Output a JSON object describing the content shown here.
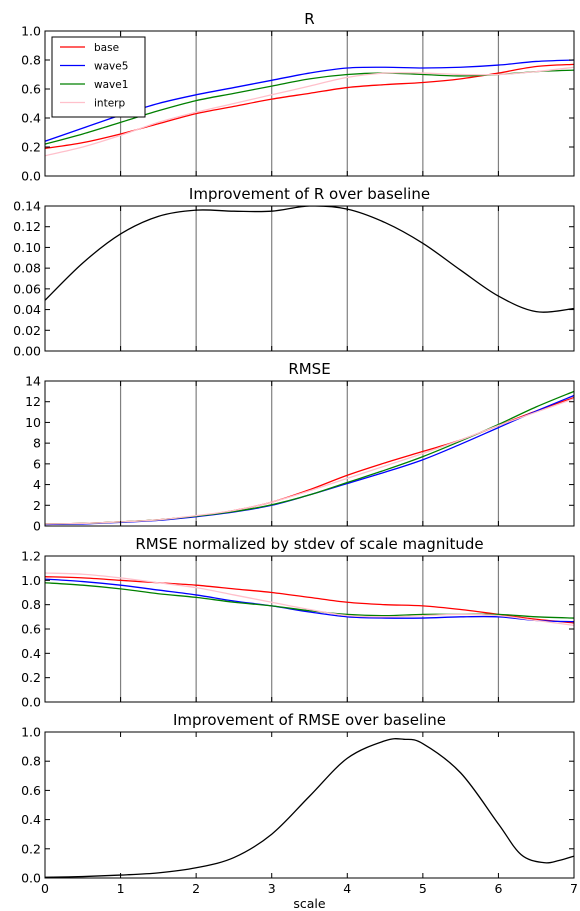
{
  "chart_data": [
    {
      "type": "line",
      "title": "R",
      "xlabel": "",
      "ylabel": "",
      "xlim": [
        0,
        7
      ],
      "ylim": [
        0,
        1.0
      ],
      "xticks": [
        0,
        1,
        2,
        3,
        4,
        5,
        6,
        7
      ],
      "yticks": [
        "0.0",
        "0.2",
        "0.4",
        "0.6",
        "0.8",
        "1.0"
      ],
      "vgrid": [
        1,
        2,
        3,
        4,
        5,
        6
      ],
      "show_xticklabels": false,
      "legend": {
        "placement": "top-left"
      },
      "series": [
        {
          "name": "base",
          "color": "#ff0000",
          "x": [
            0,
            0.5,
            1,
            1.5,
            2,
            2.5,
            3,
            3.5,
            4,
            4.5,
            5,
            5.5,
            6,
            6.5,
            7
          ],
          "y": [
            0.19,
            0.23,
            0.29,
            0.36,
            0.43,
            0.48,
            0.53,
            0.57,
            0.61,
            0.63,
            0.645,
            0.67,
            0.71,
            0.755,
            0.77
          ]
        },
        {
          "name": "wave5",
          "color": "#0000ff",
          "x": [
            0,
            0.5,
            1,
            1.5,
            2,
            2.5,
            3,
            3.5,
            4,
            4.5,
            5,
            5.5,
            6,
            6.5,
            7
          ],
          "y": [
            0.24,
            0.33,
            0.42,
            0.5,
            0.56,
            0.61,
            0.66,
            0.71,
            0.745,
            0.75,
            0.745,
            0.75,
            0.765,
            0.79,
            0.8
          ]
        },
        {
          "name": "wave1",
          "color": "#008000",
          "x": [
            0,
            0.5,
            1,
            1.5,
            2,
            2.5,
            3,
            3.5,
            4,
            4.5,
            5,
            5.5,
            6,
            6.5,
            7
          ],
          "y": [
            0.22,
            0.29,
            0.37,
            0.45,
            0.52,
            0.57,
            0.62,
            0.67,
            0.7,
            0.71,
            0.7,
            0.69,
            0.7,
            0.72,
            0.73
          ]
        },
        {
          "name": "interp",
          "color": "#ffc0cb",
          "x": [
            0,
            0.5,
            1,
            1.5,
            2,
            2.5,
            3,
            3.5,
            4,
            4.5,
            5,
            5.5,
            6,
            6.5,
            7
          ],
          "y": [
            0.14,
            0.2,
            0.28,
            0.37,
            0.44,
            0.5,
            0.56,
            0.62,
            0.68,
            0.71,
            0.71,
            0.7,
            0.7,
            0.72,
            0.75
          ]
        }
      ]
    },
    {
      "type": "line",
      "title": "Improvement of R over baseline",
      "xlabel": "",
      "ylabel": "",
      "xlim": [
        0,
        7
      ],
      "ylim": [
        0,
        0.14
      ],
      "xticks": [
        0,
        1,
        2,
        3,
        4,
        5,
        6,
        7
      ],
      "yticks": [
        "0.00",
        "0.02",
        "0.04",
        "0.06",
        "0.08",
        "0.10",
        "0.12",
        "0.14"
      ],
      "vgrid": [
        1,
        2,
        3,
        4,
        5,
        6
      ],
      "show_xticklabels": false,
      "series": [
        {
          "color": "#000000",
          "x": [
            0,
            0.5,
            1,
            1.5,
            2,
            2.5,
            3,
            3.5,
            4,
            4.5,
            5,
            5.5,
            6,
            6.5,
            7
          ],
          "y": [
            0.049,
            0.085,
            0.113,
            0.13,
            0.136,
            0.135,
            0.135,
            0.14,
            0.137,
            0.124,
            0.104,
            0.078,
            0.053,
            0.038,
            0.041
          ]
        }
      ]
    },
    {
      "type": "line",
      "title": "RMSE",
      "xlabel": "",
      "ylabel": "",
      "xlim": [
        0,
        7
      ],
      "ylim": [
        0,
        14
      ],
      "xticks": [
        0,
        1,
        2,
        3,
        4,
        5,
        6,
        7
      ],
      "yticks": [
        "0",
        "2",
        "4",
        "6",
        "8",
        "10",
        "12",
        "14"
      ],
      "vgrid": [
        1,
        2,
        3,
        4,
        5,
        6
      ],
      "show_xticklabels": false,
      "series": [
        {
          "name": "base",
          "color": "#ff0000",
          "x": [
            0,
            0.5,
            1,
            1.5,
            2,
            2.5,
            3,
            3.5,
            4,
            4.5,
            5,
            5.5,
            6,
            6.5,
            7
          ],
          "y": [
            0.2,
            0.25,
            0.4,
            0.6,
            0.95,
            1.5,
            2.3,
            3.5,
            4.9,
            6.1,
            7.2,
            8.3,
            9.7,
            11.1,
            12.4
          ]
        },
        {
          "name": "wave5",
          "color": "#0000ff",
          "x": [
            0,
            0.5,
            1,
            1.5,
            2,
            2.5,
            3,
            3.5,
            4,
            4.5,
            5,
            5.5,
            6,
            6.5,
            7
          ],
          "y": [
            0.15,
            0.2,
            0.35,
            0.55,
            0.9,
            1.35,
            2.0,
            3.0,
            4.1,
            5.2,
            6.4,
            7.9,
            9.5,
            11.1,
            12.6
          ]
        },
        {
          "name": "wave1",
          "color": "#008000",
          "x": [
            0,
            0.5,
            1,
            1.5,
            2,
            2.5,
            3,
            3.5,
            4,
            4.5,
            5,
            5.5,
            6,
            6.5,
            7
          ],
          "y": [
            0.2,
            0.25,
            0.4,
            0.6,
            0.95,
            1.4,
            2.05,
            3.0,
            4.2,
            5.4,
            6.7,
            8.2,
            9.8,
            11.5,
            13.0
          ]
        },
        {
          "name": "interp",
          "color": "#ffc0cb",
          "x": [
            0,
            0.5,
            1,
            1.5,
            2,
            2.5,
            3,
            3.5,
            4,
            4.5,
            5,
            5.5,
            6,
            6.5,
            7
          ],
          "y": [
            0.2,
            0.25,
            0.4,
            0.6,
            1.0,
            1.5,
            2.3,
            3.4,
            4.6,
            5.8,
            7.0,
            8.3,
            9.7,
            11.0,
            12.3
          ]
        }
      ]
    },
    {
      "type": "line",
      "title": "RMSE normalized by stdev of scale magnitude",
      "xlabel": "",
      "ylabel": "",
      "xlim": [
        0,
        7
      ],
      "ylim": [
        0,
        1.2
      ],
      "xticks": [
        0,
        1,
        2,
        3,
        4,
        5,
        6,
        7
      ],
      "yticks": [
        "0.0",
        "0.2",
        "0.4",
        "0.6",
        "0.8",
        "1.0",
        "1.2"
      ],
      "vgrid": [
        1,
        2,
        3,
        4,
        5,
        6
      ],
      "show_xticklabels": false,
      "series": [
        {
          "name": "base",
          "color": "#ff0000",
          "x": [
            0,
            0.5,
            1,
            1.5,
            2,
            2.5,
            3,
            3.5,
            4,
            4.5,
            5,
            5.5,
            6,
            6.5,
            7
          ],
          "y": [
            1.03,
            1.02,
            1.0,
            0.98,
            0.96,
            0.93,
            0.9,
            0.86,
            0.82,
            0.8,
            0.79,
            0.76,
            0.72,
            0.68,
            0.65
          ]
        },
        {
          "name": "wave5",
          "color": "#0000ff",
          "x": [
            0,
            0.5,
            1,
            1.5,
            2,
            2.5,
            3,
            3.5,
            4,
            4.5,
            5,
            5.5,
            6,
            6.5,
            7
          ],
          "y": [
            1.01,
            0.99,
            0.96,
            0.92,
            0.88,
            0.83,
            0.79,
            0.74,
            0.7,
            0.69,
            0.69,
            0.7,
            0.7,
            0.67,
            0.66
          ]
        },
        {
          "name": "wave1",
          "color": "#008000",
          "x": [
            0,
            0.5,
            1,
            1.5,
            2,
            2.5,
            3,
            3.5,
            4,
            4.5,
            5,
            5.5,
            6,
            6.5,
            7
          ],
          "y": [
            0.98,
            0.96,
            0.93,
            0.89,
            0.86,
            0.82,
            0.79,
            0.75,
            0.72,
            0.71,
            0.72,
            0.72,
            0.72,
            0.7,
            0.69
          ]
        },
        {
          "name": "interp",
          "color": "#ffc0cb",
          "x": [
            0,
            0.5,
            1,
            1.5,
            2,
            2.5,
            3,
            3.5,
            4,
            4.5,
            5,
            5.5,
            6,
            6.5,
            7
          ],
          "y": [
            1.06,
            1.05,
            1.02,
            0.98,
            0.94,
            0.88,
            0.82,
            0.76,
            0.71,
            0.7,
            0.71,
            0.72,
            0.71,
            0.67,
            0.63
          ]
        }
      ]
    },
    {
      "type": "line",
      "title": "Improvement of RMSE over baseline",
      "xlabel": "scale",
      "ylabel": "",
      "xlim": [
        0,
        7
      ],
      "ylim": [
        0,
        1.0
      ],
      "xticks": [
        0,
        1,
        2,
        3,
        4,
        5,
        6,
        7
      ],
      "yticks": [
        "0.0",
        "0.2",
        "0.4",
        "0.6",
        "0.8",
        "1.0"
      ],
      "vgrid": [],
      "show_xticklabels": true,
      "series": [
        {
          "color": "#000000",
          "x": [
            0,
            0.5,
            1,
            1.5,
            2,
            2.5,
            3,
            3.5,
            4,
            4.5,
            4.75,
            5,
            5.5,
            6,
            6.3,
            6.6,
            6.8,
            7
          ],
          "y": [
            0.005,
            0.01,
            0.02,
            0.035,
            0.07,
            0.14,
            0.3,
            0.56,
            0.82,
            0.94,
            0.95,
            0.92,
            0.72,
            0.37,
            0.16,
            0.105,
            0.12,
            0.15
          ]
        }
      ]
    }
  ]
}
